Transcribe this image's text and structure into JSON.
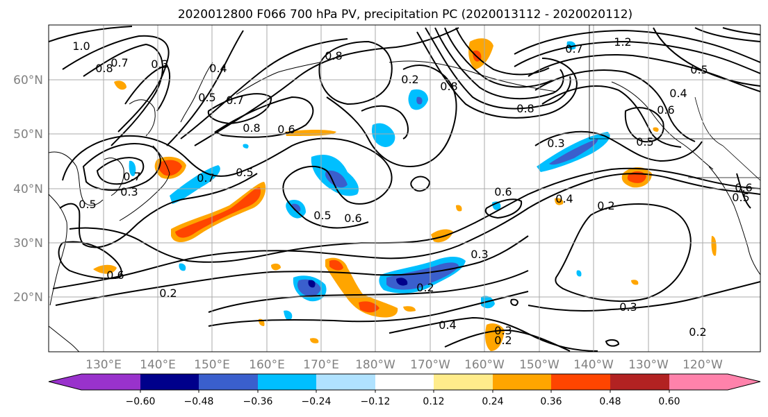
{
  "figure": {
    "title": "2020012800 F066 700 hPa PV, precipitation PC (2020013112 - 2020020112)"
  },
  "map": {
    "latitude_labels": [
      "60°N",
      "50°N",
      "40°N",
      "30°N",
      "20°N"
    ],
    "longitude_labels": [
      "130°E",
      "140°E",
      "150°E",
      "160°E",
      "170°E",
      "180°W",
      "170°W",
      "160°W",
      "150°W",
      "140°W",
      "130°W",
      "120°W"
    ],
    "pv_contour_labels": [
      "1.0",
      "0.8",
      "0.7",
      "0.3",
      "0.4",
      "0.5",
      "0.7",
      "0.8",
      "0.8",
      "0.2",
      "0.7",
      "0.8",
      "1.2",
      "0.5",
      "0.4",
      "0.6",
      "0.6",
      "0.8",
      "0.5",
      "0.6",
      "0.5",
      "0.3",
      "0.7",
      "0.7",
      "0.5",
      "0.3",
      "0.6",
      "0.5",
      "0.6",
      "0.6",
      "0.4",
      "0.2",
      "0.5",
      "0.3",
      "0.2",
      "0.2",
      "0.3",
      "0.4",
      "0.3",
      "0.2",
      "0.2"
    ]
  },
  "colorbar": {
    "tick_labels": [
      "−0.60",
      "−0.48",
      "−0.36",
      "−0.24",
      "−0.12",
      "0.12",
      "0.24",
      "0.36",
      "0.48",
      "0.60"
    ],
    "colors": [
      "#9932cc",
      "#00008b",
      "#3a5fcd",
      "#00bfff",
      "#b0e2ff",
      "#ffffff",
      "#ffec8b",
      "#ffa500",
      "#ff4500",
      "#b22222",
      "#ff82ab"
    ]
  },
  "legend_colors": {
    "frame": "#000000",
    "grid": "#aaaaaa",
    "axis_labels": "#808080",
    "contour": "#000000"
  }
}
